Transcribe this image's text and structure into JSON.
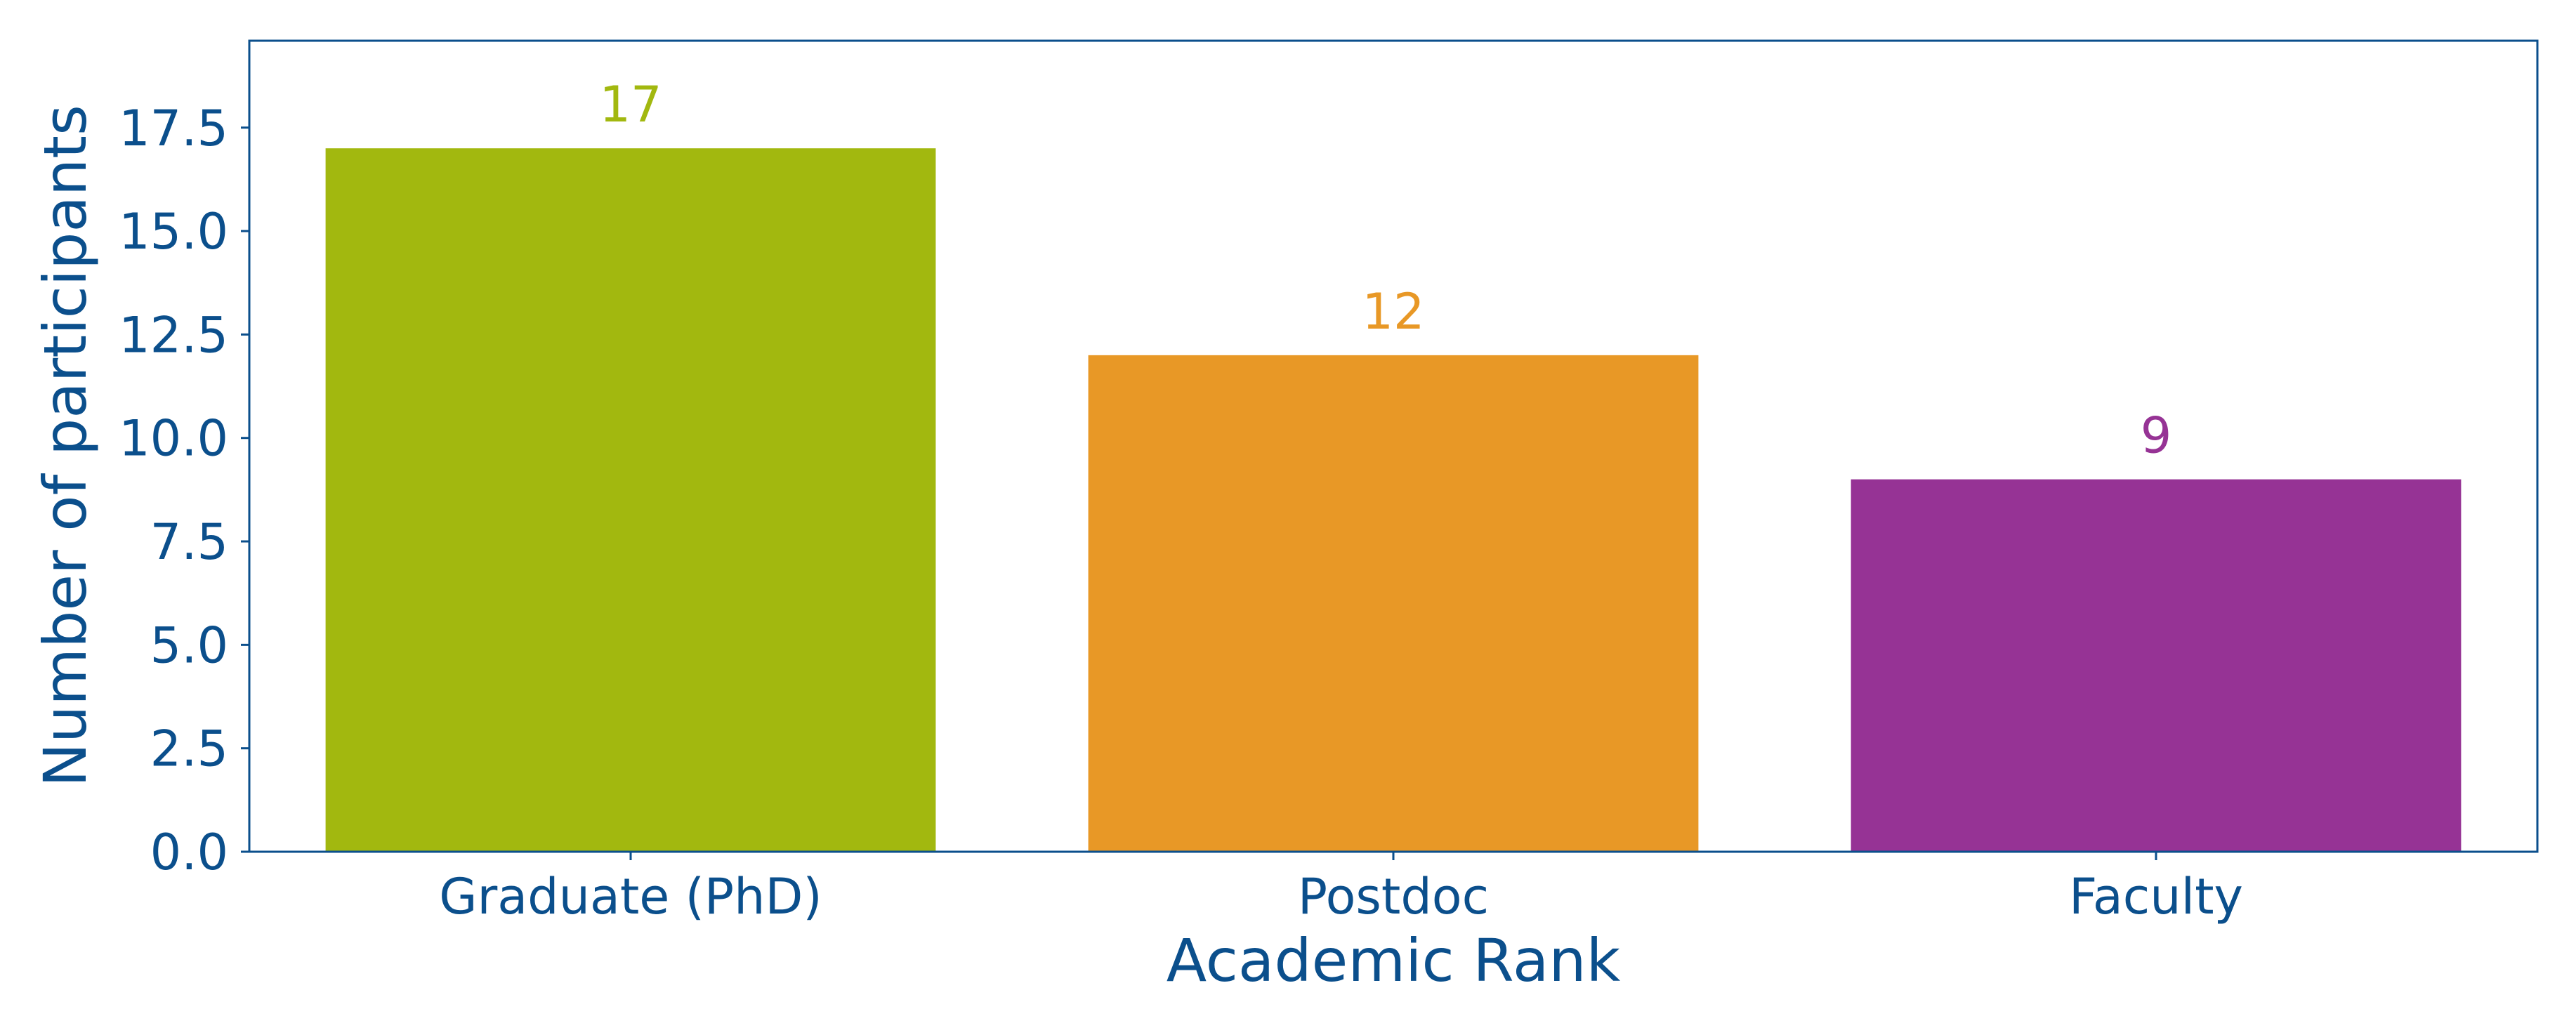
{
  "chart_data": {
    "type": "bar",
    "title": "",
    "xlabel": "Academic Rank",
    "ylabel": "Number of participants",
    "categories": [
      "Graduate (PhD)",
      "Postdoc",
      "Faculty"
    ],
    "values": [
      17,
      12,
      9
    ],
    "data_labels": [
      "17",
      "12",
      "9"
    ],
    "colors": [
      "#a2b80f",
      "#e89826",
      "#963395"
    ],
    "ylim": [
      0,
      19.6
    ],
    "yticks": [
      0.0,
      2.5,
      5.0,
      7.5,
      10.0,
      12.5,
      15.0,
      17.5
    ],
    "ytick_labels": [
      "0.0",
      "2.5",
      "5.0",
      "7.5",
      "10.0",
      "12.5",
      "15.0",
      "17.5"
    ],
    "grid": false,
    "axis_color": "#0b4f8c"
  }
}
